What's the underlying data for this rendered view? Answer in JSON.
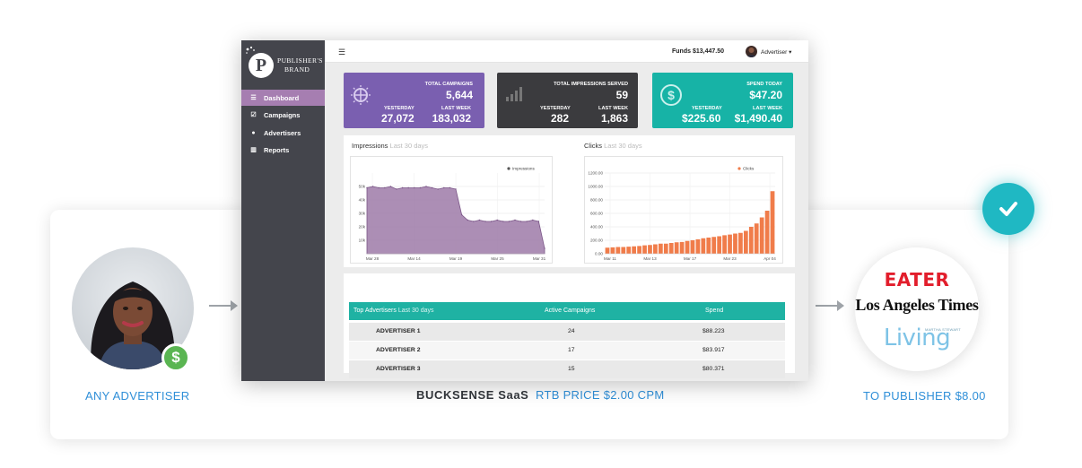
{
  "captions": {
    "advertiser": "ANY ADVERTISER",
    "saas": "BUCKSENSE SaaS",
    "rtb": "RTB PRICE $2.00 CPM",
    "publisher": "TO PUBLISHER $8.00"
  },
  "publishers": {
    "eater": "EATER",
    "latimes": "Los Angeles Times",
    "living": "Living",
    "living_small": "MARTHA STEWART"
  },
  "badge": {
    "dollar": "$"
  },
  "dashboard": {
    "brand": {
      "initial": "P",
      "line1": "PUBLISHER'S",
      "line2": "BRAND"
    },
    "nav": [
      {
        "label": "Dashboard",
        "icon": "list-icon"
      },
      {
        "label": "Campaigns",
        "icon": "checkbox-icon"
      },
      {
        "label": "Advertisers",
        "icon": "users-icon"
      },
      {
        "label": "Reports",
        "icon": "bar-chart-icon"
      }
    ],
    "topbar": {
      "funds": "Funds $13,447.50",
      "user": "Advertiser ▾"
    },
    "kpis": [
      {
        "label": "TOTAL CAMPAIGNS",
        "value": "5,644",
        "y_label": "YESTERDAY",
        "y_value": "27,072",
        "w_label": "LAST WEEK",
        "w_value": "183,032",
        "color": "#7a5fb0",
        "icon": "globe-icon"
      },
      {
        "label": "TOTAL IMPRESSIONS SERVED",
        "value": "59",
        "y_label": "YESTERDAY",
        "y_value": "282",
        "w_label": "LAST WEEK",
        "w_value": "1,863",
        "color": "#3b3b3e",
        "icon": "bar-chart-icon"
      },
      {
        "label": "SPEND TODAY",
        "value": "$47.20",
        "y_label": "YESTERDAY",
        "y_value": "$225.60",
        "w_label": "LAST WEEK",
        "w_value": "$1,490.40",
        "color": "#17b3a6",
        "icon": "dollar-circle-icon"
      }
    ],
    "impressions_panel": {
      "title": "Impressions",
      "subtitle": "Last 30 days"
    },
    "clicks_panel": {
      "title": "Clicks",
      "subtitle": "Last 30 days"
    },
    "table": {
      "headers": [
        "Top Advertisers",
        "Last 30 days",
        "Active Campaigns",
        "Spend"
      ],
      "rows": [
        {
          "name": "ADVERTISER 1",
          "campaigns": "24",
          "spend": "$88.223"
        },
        {
          "name": "ADVERTISER 2",
          "campaigns": "17",
          "spend": "$83.917"
        },
        {
          "name": "ADVERTISER 3",
          "campaigns": "15",
          "spend": "$80.371"
        }
      ]
    }
  },
  "chart_data": [
    {
      "type": "area",
      "legend": "Impressions",
      "legend_position": "top-right",
      "grid": true,
      "ylim": [
        0,
        60
      ],
      "y_ticks": [
        "10k",
        "20k",
        "30k",
        "40k",
        "50k"
      ],
      "x_ticks": [
        "Mar 28",
        "Mar 14",
        "Mar 19",
        "Mar 25",
        "Mar 31"
      ],
      "color": "#9e7aa8",
      "values": [
        49,
        50,
        49,
        49,
        50,
        48,
        49,
        49,
        49,
        49,
        50,
        49,
        48,
        49,
        49,
        48,
        29,
        25,
        24,
        25,
        24,
        24,
        25,
        24,
        24,
        25,
        24,
        24,
        25,
        24,
        4
      ]
    },
    {
      "type": "bar",
      "legend": "Clicks",
      "legend_position": "top-right",
      "grid": true,
      "ylim": [
        0,
        1200
      ],
      "y_ticks": [
        "0.00",
        "200.00",
        "400.00",
        "600.00",
        "800.00",
        "1000.00",
        "1200.00"
      ],
      "x_ticks": [
        "Mar 11",
        "Mar 13",
        "Mar 17",
        "Mar 23",
        "Apr 04"
      ],
      "color": "#f07c4a",
      "values": [
        90,
        95,
        100,
        100,
        105,
        110,
        115,
        125,
        130,
        140,
        150,
        150,
        160,
        170,
        175,
        190,
        200,
        215,
        230,
        240,
        250,
        260,
        275,
        285,
        300,
        310,
        340,
        400,
        450,
        540,
        640,
        930
      ]
    }
  ]
}
